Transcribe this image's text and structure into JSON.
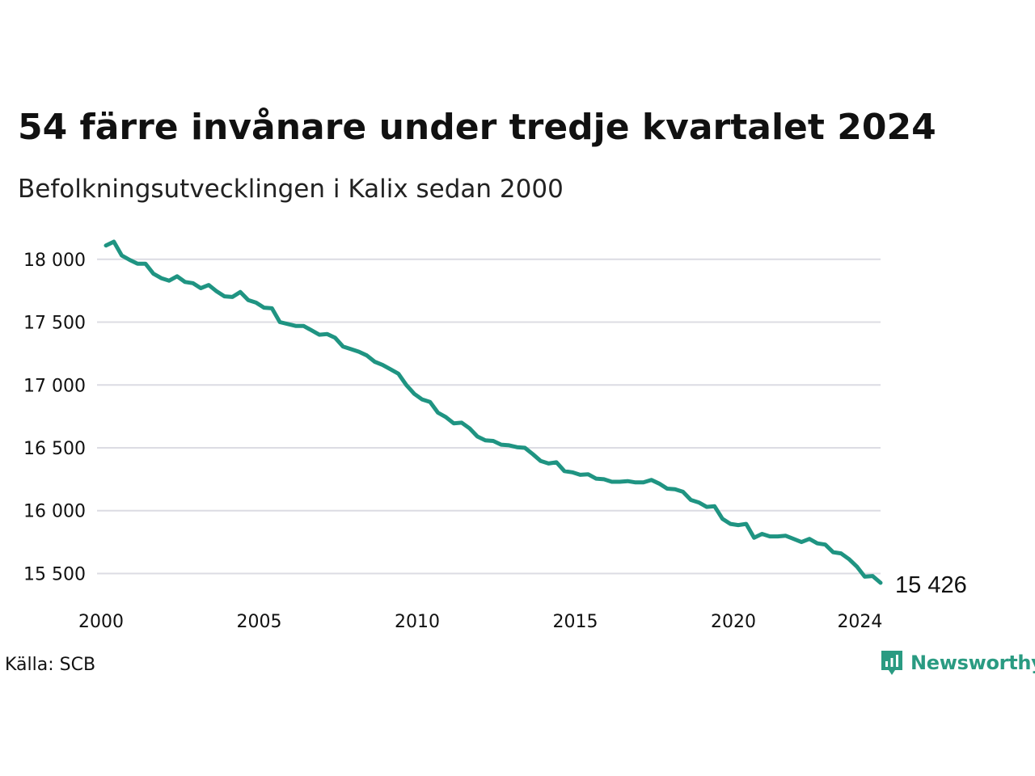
{
  "title": "54 färre invånare under tredje kvartalet 2024",
  "subtitle": "Befolkningsutvecklingen i Kalix sedan 2000",
  "source": "Källa: SCB",
  "brand": {
    "name": "Newsworthy",
    "icon": "newsworthy-logo-icon",
    "color": "#2a9b82"
  },
  "chart_data": {
    "type": "line",
    "line_color": "#1f9482",
    "grid": true,
    "xlim": [
      2000,
      2024.5
    ],
    "ylim": [
      15426,
      18140
    ],
    "x_ticks": [
      2000,
      2005,
      2010,
      2015,
      2020,
      2024
    ],
    "x_tick_labels": [
      "2000",
      "2005",
      "2010",
      "2015",
      "2020",
      "2024"
    ],
    "y_ticks": [
      15500,
      16000,
      16500,
      17000,
      17500,
      18000
    ],
    "y_tick_labels": [
      "15 500",
      "16 000",
      "16 500",
      "17 000",
      "17 500",
      "18 000"
    ],
    "end_label": "15 426",
    "series": [
      {
        "x": [
          2000.0,
          2000.25,
          2000.5,
          2000.75,
          2001.0,
          2001.25,
          2001.5,
          2001.75,
          2002.0,
          2002.25,
          2002.5,
          2002.75,
          2003.0,
          2003.25,
          2003.5,
          2003.75,
          2004.0,
          2004.25,
          2004.5,
          2004.75,
          2005.0,
          2005.25,
          2005.5,
          2005.75,
          2006.0,
          2006.25,
          2006.5,
          2006.75,
          2007.0,
          2007.25,
          2007.5,
          2007.75,
          2008.0,
          2008.25,
          2008.5,
          2008.75,
          2009.0,
          2009.25,
          2009.5,
          2009.75,
          2010.0,
          2010.25,
          2010.5,
          2010.75,
          2011.0,
          2011.25,
          2011.5,
          2011.75,
          2012.0,
          2012.25,
          2012.5,
          2012.75,
          2013.0,
          2013.25,
          2013.5,
          2013.75,
          2014.0,
          2014.25,
          2014.5,
          2014.75,
          2015.0,
          2015.25,
          2015.5,
          2015.75,
          2016.0,
          2016.25,
          2016.5,
          2016.75,
          2017.0,
          2017.25,
          2017.5,
          2017.75,
          2018.0,
          2018.25,
          2018.5,
          2018.75,
          2019.0,
          2019.25,
          2019.5,
          2019.75,
          2020.0,
          2020.25,
          2020.5,
          2020.75,
          2021.0,
          2021.25,
          2021.5,
          2021.75,
          2022.0,
          2022.25,
          2022.5,
          2022.75,
          2023.0,
          2023.25,
          2023.5,
          2023.75,
          2024.0,
          2024.25,
          2024.5
        ],
        "y": [
          18110,
          18140,
          18030,
          17995,
          17965,
          17965,
          17885,
          17850,
          17830,
          17865,
          17820,
          17810,
          17770,
          17795,
          17745,
          17705,
          17700,
          17740,
          17675,
          17655,
          17615,
          17610,
          17500,
          17485,
          17470,
          17470,
          17435,
          17400,
          17405,
          17375,
          17305,
          17285,
          17265,
          17235,
          17185,
          17160,
          17125,
          17090,
          17000,
          16930,
          16885,
          16865,
          16780,
          16745,
          16695,
          16700,
          16655,
          16590,
          16560,
          16555,
          16525,
          16520,
          16505,
          16500,
          16450,
          16395,
          16375,
          16385,
          16315,
          16305,
          16285,
          16290,
          16255,
          16250,
          16230,
          16230,
          16235,
          16225,
          16225,
          16245,
          16215,
          16175,
          16170,
          16150,
          16085,
          16065,
          16030,
          16035,
          15935,
          15895,
          15885,
          15895,
          15785,
          15815,
          15795,
          15795,
          15800,
          15775,
          15750,
          15775,
          15740,
          15730,
          15670,
          15660,
          15615,
          15555,
          15475,
          15480,
          15426
        ]
      }
    ]
  }
}
